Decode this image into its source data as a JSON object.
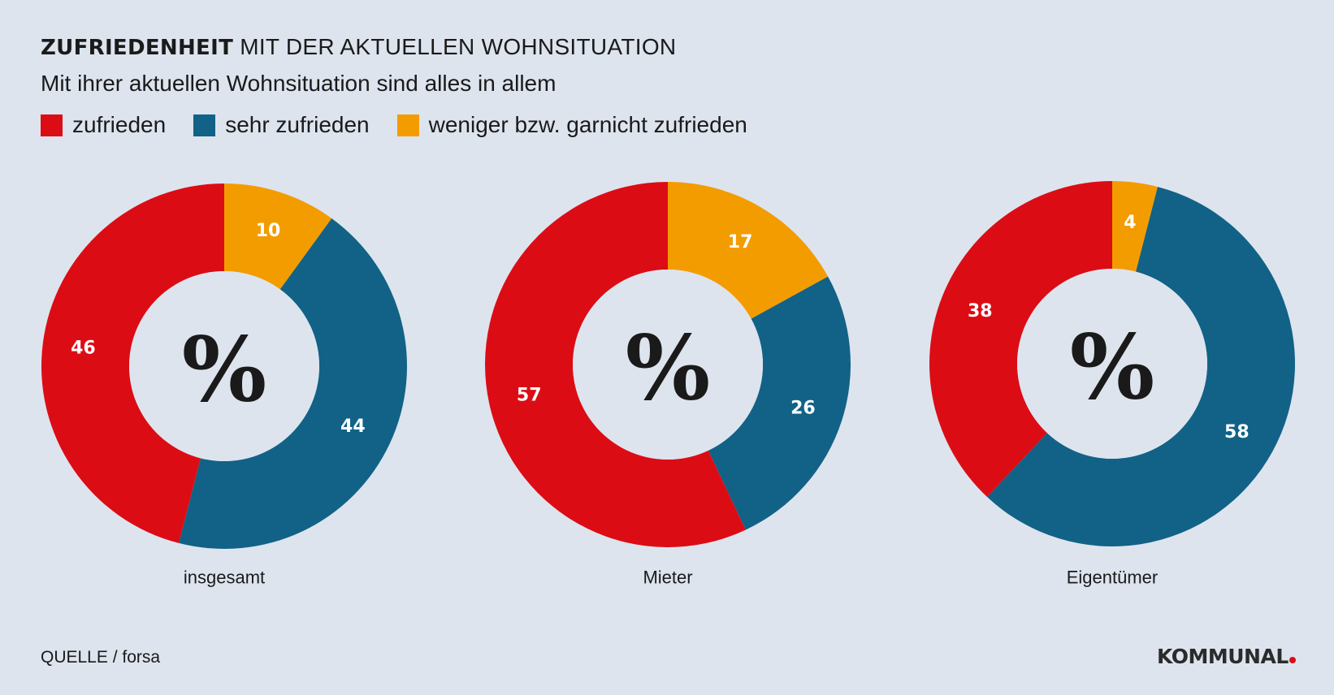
{
  "header": {
    "title_bold": "ZUFRIEDENHEIT",
    "title_rest": " MIT DER AKTUELLEN WOHNSITUATION",
    "subtitle": "Mit ihrer aktuellen Wohnsituation sind alles in allem"
  },
  "legend": [
    {
      "label": "zufrieden",
      "color": "#dc0c15"
    },
    {
      "label": "sehr zufrieden",
      "color": "#116286"
    },
    {
      "label": "weniger bzw. garnicht zufrieden",
      "color": "#f39c00"
    }
  ],
  "chart_data": [
    {
      "type": "pie",
      "label": "insgesamt",
      "center_text": "%",
      "slices": [
        {
          "name": "weniger bzw. garnicht zufrieden",
          "value": 10
        },
        {
          "name": "sehr zufrieden",
          "value": 44
        },
        {
          "name": "zufrieden",
          "value": 46
        }
      ]
    },
    {
      "type": "pie",
      "label": "Mieter",
      "center_text": "%",
      "slices": [
        {
          "name": "weniger bzw. garnicht zufrieden",
          "value": 17
        },
        {
          "name": "sehr zufrieden",
          "value": 26
        },
        {
          "name": "zufrieden",
          "value": 57
        }
      ]
    },
    {
      "type": "pie",
      "label": "Eigentümer",
      "center_text": "%",
      "slices": [
        {
          "name": "weniger bzw. garnicht zufrieden",
          "value": 4
        },
        {
          "name": "sehr zufrieden",
          "value": 58
        },
        {
          "name": "zufrieden",
          "value": 38
        }
      ]
    }
  ],
  "footer": {
    "source": "QUELLE / forsa",
    "brand": "KOMMUNAL"
  }
}
